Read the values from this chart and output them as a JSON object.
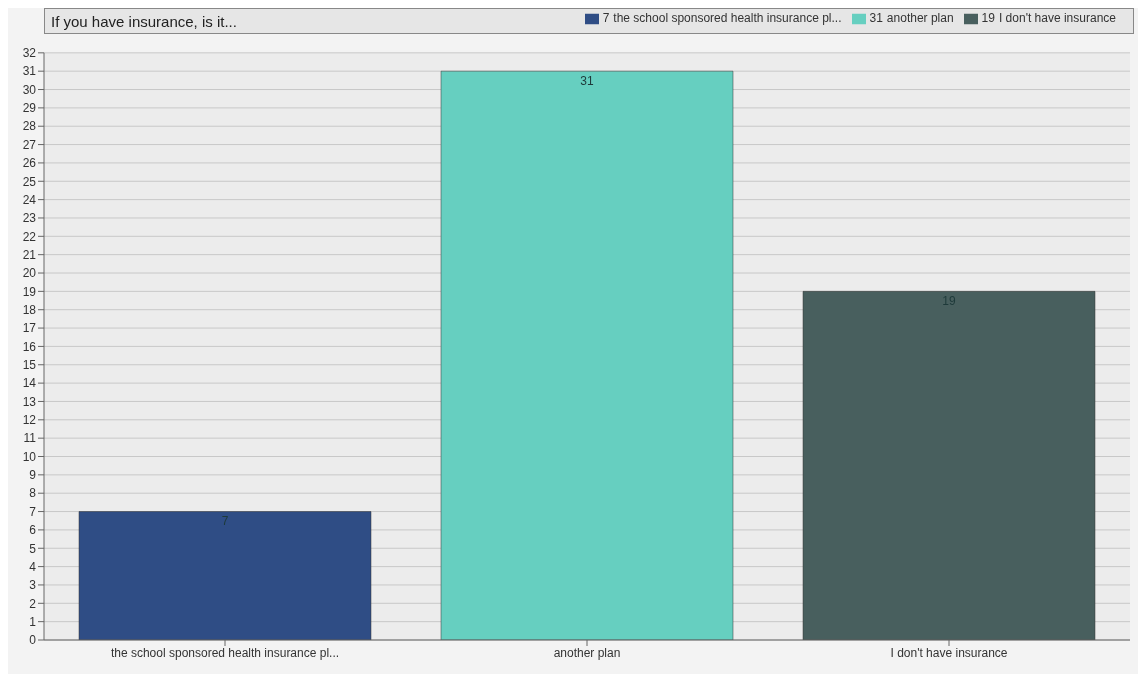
{
  "chart_data": {
    "type": "bar",
    "title": "If you have insurance, is it...",
    "stacked": true,
    "categories": [
      "the school sponsored health insurance pl...",
      "another plan",
      "I don't have insurance"
    ],
    "series": [
      {
        "name": "the school sponsored health insurance pl...",
        "color": "#2f4d85",
        "values": [
          7,
          null,
          null
        ]
      },
      {
        "name": "another plan",
        "color": "#66cfc0",
        "values": [
          null,
          31,
          null
        ]
      },
      {
        "name": "I don't have insurance",
        "color": "#485f5e",
        "values": [
          null,
          null,
          19
        ]
      }
    ],
    "ylim": [
      0,
      32
    ],
    "yticks": [
      0,
      1,
      2,
      3,
      4,
      5,
      6,
      7,
      8,
      9,
      10,
      11,
      12,
      13,
      14,
      15,
      16,
      17,
      18,
      19,
      20,
      21,
      22,
      23,
      24,
      25,
      26,
      27,
      28,
      29,
      30,
      31,
      32
    ],
    "annotations": [
      "7",
      "31",
      "19"
    ],
    "grid": "y",
    "legend": "top right",
    "data_labels": true
  }
}
